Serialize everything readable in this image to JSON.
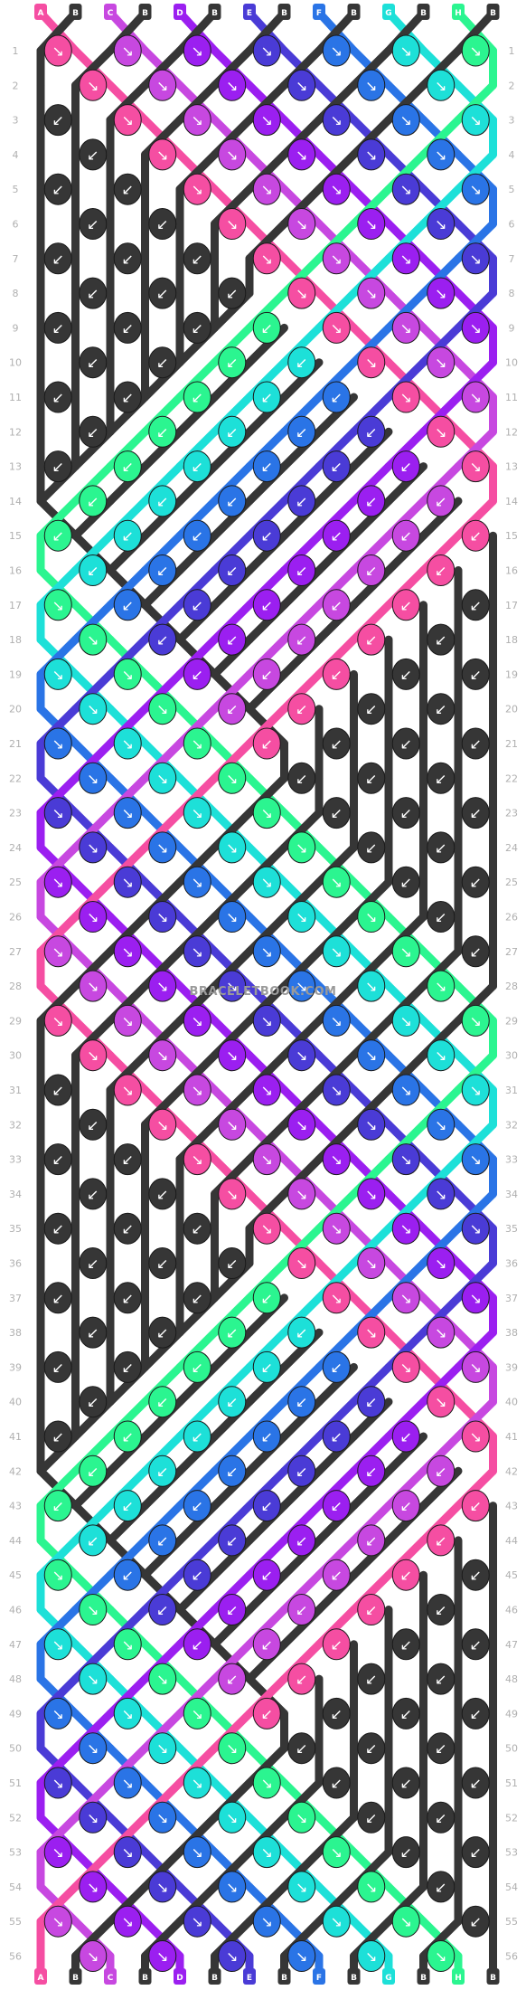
{
  "watermark": "BRACELETBOOK.COM",
  "row_count": 56,
  "strings": [
    {
      "label": "A",
      "color": "#f54ea2"
    },
    {
      "label": "B",
      "color": "#363636"
    },
    {
      "label": "C",
      "color": "#c748e0"
    },
    {
      "label": "B",
      "color": "#363636"
    },
    {
      "label": "D",
      "color": "#9b1ff0"
    },
    {
      "label": "B",
      "color": "#363636"
    },
    {
      "label": "E",
      "color": "#4a3bd6"
    },
    {
      "label": "B",
      "color": "#363636"
    },
    {
      "label": "F",
      "color": "#2a74e6"
    },
    {
      "label": "B",
      "color": "#363636"
    },
    {
      "label": "G",
      "color": "#1de0d8"
    },
    {
      "label": "B",
      "color": "#363636"
    },
    {
      "label": "H",
      "color": "#2bf590"
    },
    {
      "label": "B",
      "color": "#363636"
    }
  ],
  "colors": {
    "A": "#f54ea2",
    "B": "#363636",
    "C": "#c748e0",
    "D": "#9b1ff0",
    "E": "#4a3bd6",
    "F": "#2a74e6",
    "G": "#1de0d8",
    "H": "#2bf590"
  },
  "knot_arrows": {
    "diagonal": "↘",
    "reverse": "↙"
  }
}
